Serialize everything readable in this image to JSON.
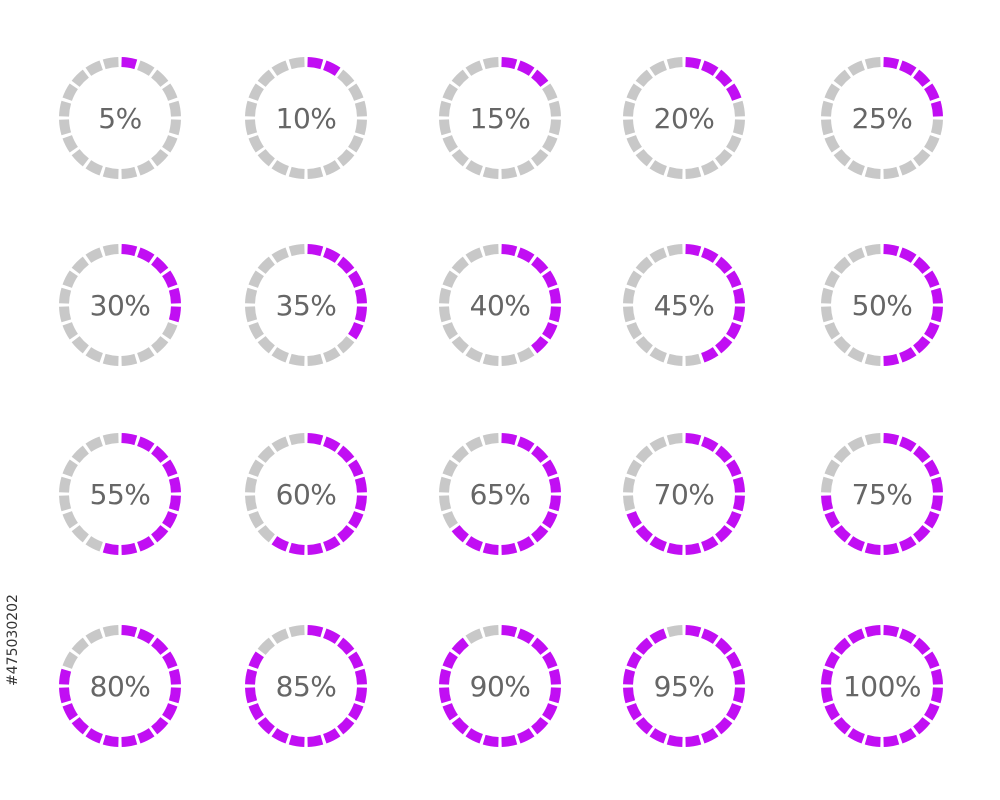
{
  "colors": {
    "filled": "#c10ef3",
    "empty": "#c8c8c8",
    "label": "#666666",
    "background": "#ffffff"
  },
  "segments_per_ring": 20,
  "rings": [
    {
      "label": "5%",
      "value": 5
    },
    {
      "label": "10%",
      "value": 10
    },
    {
      "label": "15%",
      "value": 15
    },
    {
      "label": "20%",
      "value": 20
    },
    {
      "label": "25%",
      "value": 25
    },
    {
      "label": "30%",
      "value": 30
    },
    {
      "label": "35%",
      "value": 35
    },
    {
      "label": "40%",
      "value": 40
    },
    {
      "label": "45%",
      "value": 45
    },
    {
      "label": "50%",
      "value": 50
    },
    {
      "label": "55%",
      "value": 55
    },
    {
      "label": "60%",
      "value": 60
    },
    {
      "label": "65%",
      "value": 65
    },
    {
      "label": "70%",
      "value": 70
    },
    {
      "label": "75%",
      "value": 75
    },
    {
      "label": "80%",
      "value": 80
    },
    {
      "label": "85%",
      "value": 85
    },
    {
      "label": "90%",
      "value": 90
    },
    {
      "label": "95%",
      "value": 95
    },
    {
      "label": "100%",
      "value": 100
    }
  ],
  "stock_id": "#475030202"
}
